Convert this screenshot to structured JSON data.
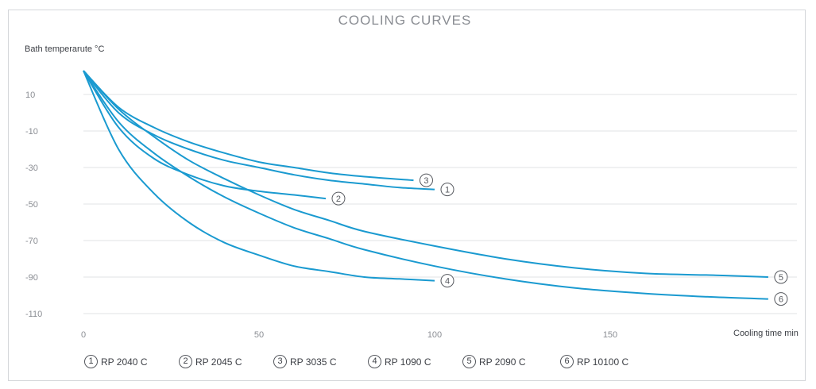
{
  "chart_data": {
    "type": "line",
    "title": "COOLING CURVES",
    "xlabel": "Cooling time min",
    "ylabel": "Bath temperarute °C",
    "xlim": [
      0,
      200
    ],
    "ylim": [
      -110,
      25
    ],
    "xticks": [
      "0",
      "50",
      "100",
      "150"
    ],
    "xtick_values": [
      0,
      50,
      100,
      150
    ],
    "yticks": [
      "10",
      "-10",
      "-30",
      "-50",
      "-70",
      "-90",
      "-110"
    ],
    "ytick_values": [
      10,
      -10,
      -30,
      -50,
      -70,
      -90,
      -110
    ],
    "grid": "horizontal",
    "color": "#1a9ad0",
    "series": [
      {
        "marker": "1",
        "name": "RP 2040 C",
        "x": [
          0,
          10,
          20,
          30,
          40,
          50,
          60,
          70,
          80,
          90,
          100
        ],
        "y": [
          23,
          0,
          -12,
          -20,
          -26,
          -30,
          -34,
          -37,
          -39,
          -41,
          -42
        ]
      },
      {
        "marker": "2",
        "name": "RP 2045 C",
        "x": [
          0,
          10,
          20,
          30,
          40,
          50,
          60,
          69
        ],
        "y": [
          23,
          -8,
          -25,
          -34,
          -40,
          -43,
          -45,
          -47
        ]
      },
      {
        "marker": "3",
        "name": "RP 3035 C",
        "x": [
          0,
          10,
          20,
          30,
          40,
          50,
          60,
          70,
          80,
          94
        ],
        "y": [
          23,
          3,
          -8,
          -16,
          -22,
          -27,
          -30,
          -33,
          -35,
          -37
        ]
      },
      {
        "marker": "4",
        "name": "RP 1090 C",
        "x": [
          0,
          10,
          20,
          30,
          40,
          50,
          60,
          70,
          80,
          90,
          100
        ],
        "y": [
          23,
          -20,
          -44,
          -60,
          -71,
          -78,
          -84,
          -87,
          -90,
          -91,
          -92
        ]
      },
      {
        "marker": "5",
        "name": "RP 2090 C",
        "x": [
          0,
          10,
          20,
          30,
          40,
          50,
          60,
          70,
          80,
          100,
          120,
          140,
          160,
          180,
          195
        ],
        "y": [
          23,
          2,
          -13,
          -26,
          -36,
          -45,
          -53,
          -59,
          -65,
          -73,
          -80,
          -85,
          -88,
          -89,
          -90
        ]
      },
      {
        "marker": "6",
        "name": "RP 10100 C",
        "x": [
          0,
          10,
          20,
          30,
          40,
          50,
          60,
          70,
          80,
          100,
          120,
          140,
          160,
          180,
          195
        ],
        "y": [
          23,
          -5,
          -22,
          -35,
          -46,
          -55,
          -63,
          -69,
          -75,
          -84,
          -91,
          -96,
          -99,
          -101,
          -102
        ]
      }
    ]
  }
}
